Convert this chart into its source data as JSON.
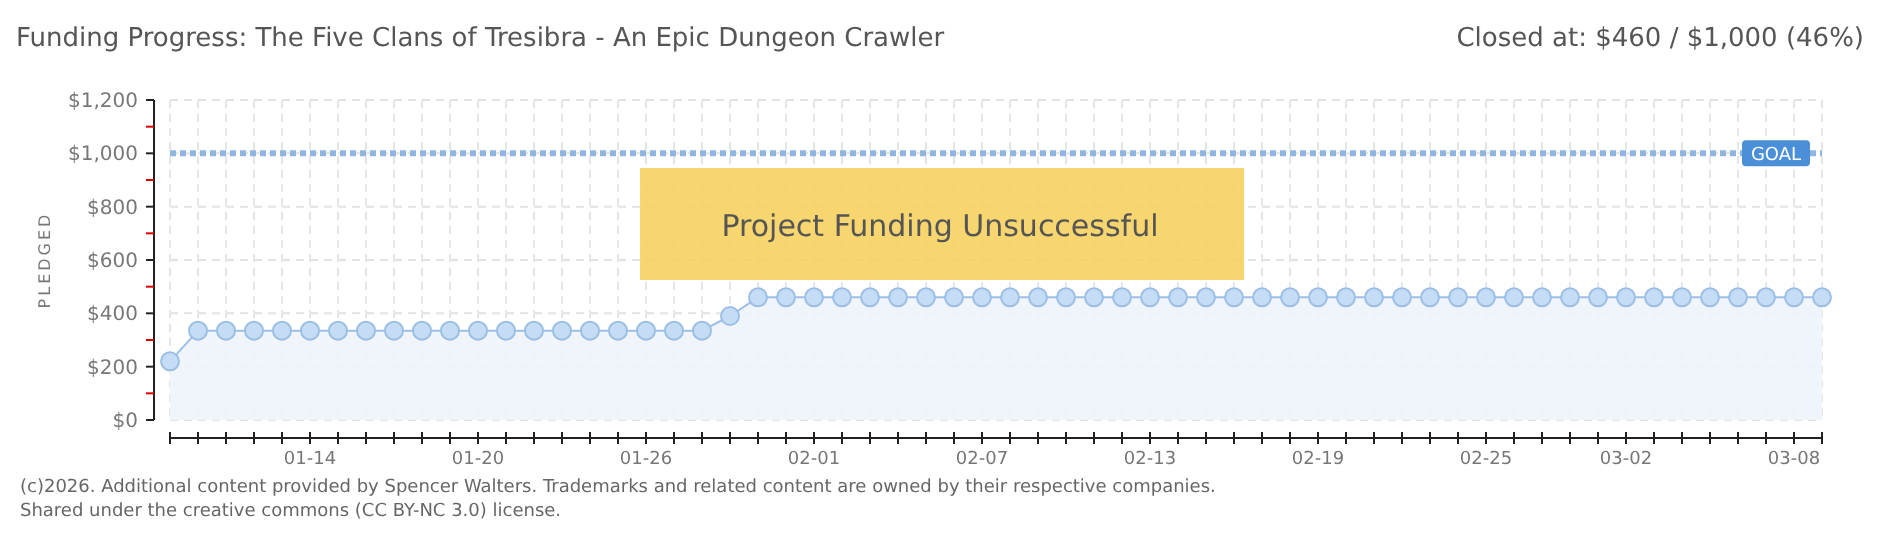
{
  "chart_data": {
    "type": "area",
    "title": "Funding Progress: The Five Clans of Tresibra - An Epic Dungeon Crawler",
    "subtitle": "Closed at: $460 / $1,000 (46%)",
    "ylabel": "PLEDGED",
    "annotations": [
      "Project Funding Unsuccessful",
      "(c)2026. Additional content provided by Spencer Walters. Trademarks and related content are owned by their respective companies.",
      "Shared under the creative commons (CC BY-NC 3.0) license."
    ],
    "x": [
      "--01-09",
      "--01-10",
      "--01-11",
      "--01-12",
      "--01-13",
      "--01-14",
      "--01-15",
      "--01-16",
      "--01-17",
      "--01-18",
      "--01-19",
      "--01-20",
      "--01-21",
      "--01-22",
      "--01-23",
      "--01-24",
      "--01-25",
      "--01-26",
      "--01-27",
      "--01-28",
      "--01-29",
      "--01-30",
      "--01-31",
      "--02-01",
      "--02-02",
      "--02-03",
      "--02-04",
      "--02-05",
      "--02-06",
      "--02-07",
      "--02-08",
      "--02-09",
      "--02-10",
      "--02-11",
      "--02-12",
      "--02-13",
      "--02-14",
      "--02-15",
      "--02-16",
      "--02-17",
      "--02-18",
      "--02-19",
      "--02-20",
      "--02-21",
      "--02-22",
      "--02-23",
      "--02-24",
      "--02-25",
      "--02-26",
      "--02-27",
      "--02-28",
      "--03-01",
      "--03-02",
      "--03-03",
      "--03-04",
      "--03-05",
      "--03-06",
      "--03-07",
      "--03-08",
      "--03-09"
    ],
    "series": [
      {
        "color": "#c5dcf5",
        "values": [
          220,
          335,
          335,
          335,
          335,
          335,
          335,
          335,
          335,
          335,
          335,
          335,
          335,
          335,
          335,
          335,
          335,
          335,
          335,
          335,
          390,
          460,
          460,
          460,
          460,
          460,
          460,
          460,
          460,
          460,
          460,
          460,
          460,
          460,
          460,
          460,
          460,
          460,
          460,
          460,
          460,
          460,
          460,
          460,
          460,
          460,
          460,
          460,
          460,
          460,
          460,
          460,
          460,
          460,
          460,
          460,
          460,
          460,
          460,
          460
        ]
      }
    ],
    "xlim": [
      "--01-09",
      "--03-09"
    ],
    "xticks": [
      {
        "value": "--01-14",
        "label": "01-14"
      },
      {
        "value": "--01-20",
        "label": "01-20"
      },
      {
        "value": "--01-26",
        "label": "01-26"
      },
      {
        "value": "--02-01",
        "label": "02-01"
      },
      {
        "value": "--02-07",
        "label": "02-07"
      },
      {
        "value": "--02-13",
        "label": "02-13"
      },
      {
        "value": "--02-19",
        "label": "02-19"
      },
      {
        "value": "--02-25",
        "label": "02-25"
      },
      {
        "value": "--03-02",
        "label": "03-02"
      },
      {
        "value": "--03-08",
        "label": "03-08"
      }
    ],
    "ylim": [
      0,
      1200
    ],
    "yticks": [
      {
        "value": 0,
        "label": "$0"
      },
      {
        "value": 100,
        "label": null
      },
      {
        "value": 200,
        "label": "$200"
      },
      {
        "value": 300,
        "label": null
      },
      {
        "value": 400,
        "label": "$400"
      },
      {
        "value": 500,
        "label": null
      },
      {
        "value": 600,
        "label": "$600"
      },
      {
        "value": 700,
        "label": null
      },
      {
        "value": 800,
        "label": "$800"
      },
      {
        "value": 900,
        "label": null
      },
      {
        "value": 1000,
        "label": "$1,000"
      },
      {
        "value": 1100,
        "label": null
      },
      {
        "value": 1200,
        "label": "$1,200"
      }
    ],
    "ref_lines": [
      {
        "axis": "y",
        "value": 1000,
        "label": "GOAL",
        "color": "#8fb5e3",
        "line_style": "dotted"
      }
    ],
    "grid": true,
    "marker": "circle"
  }
}
